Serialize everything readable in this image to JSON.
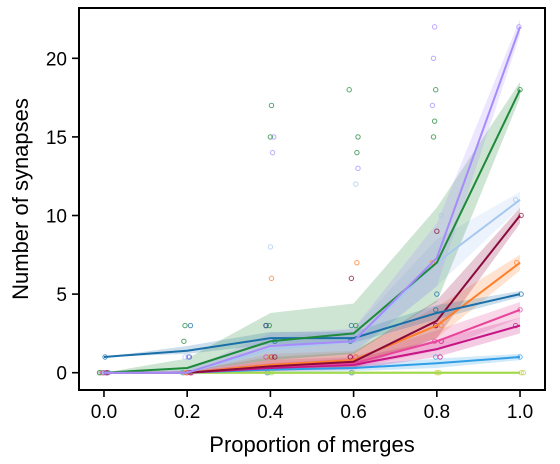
{
  "chart_data": {
    "type": "line",
    "title": "",
    "xlabel": "Proportion of merges",
    "ylabel": "Number of synapses",
    "xlim": [
      -0.06,
      1.06
    ],
    "ylim": [
      -1.1,
      23.2
    ],
    "xticks": [
      0.0,
      0.2,
      0.4,
      0.6,
      0.8,
      1.0
    ],
    "xtick_labels": [
      "0.0",
      "0.2",
      "0.4",
      "0.6",
      "0.8",
      "1.0"
    ],
    "yticks": [
      0,
      5,
      10,
      15,
      20
    ],
    "ytick_labels": [
      "0",
      "5",
      "10",
      "15",
      "20"
    ],
    "grid": false,
    "legend": "none",
    "x": [
      0.0,
      0.2,
      0.4,
      0.6,
      0.8,
      1.0
    ],
    "series": [
      {
        "color": "#f0c040",
        "y": [
          0,
          0,
          0,
          0,
          0,
          0
        ],
        "band_low": [
          0,
          0,
          0,
          0,
          0,
          0
        ],
        "band_high": [
          0,
          0,
          0,
          0,
          0,
          0
        ],
        "points": [
          [
            0,
            0
          ],
          [
            0.2,
            0
          ],
          [
            0.4,
            0
          ],
          [
            0.6,
            0
          ],
          [
            0.8,
            0
          ],
          [
            1.0,
            0
          ]
        ]
      },
      {
        "color": "#9bdc50",
        "y": [
          0,
          0,
          0,
          0,
          0,
          0
        ],
        "band_low": [
          0,
          0,
          0,
          0,
          0,
          0
        ],
        "band_high": [
          0,
          0,
          0,
          0,
          0,
          0
        ],
        "points": [
          [
            0,
            0
          ],
          [
            0.4,
            0
          ],
          [
            0.8,
            0
          ],
          [
            1.0,
            0
          ]
        ]
      },
      {
        "color": "#2f9ee8",
        "y": [
          0,
          0,
          0.2,
          0.3,
          0.6,
          1.0
        ],
        "band_low": [
          0,
          0,
          0,
          0.1,
          0.3,
          0.8
        ],
        "band_high": [
          0,
          0.1,
          0.4,
          0.5,
          0.9,
          1.2
        ],
        "points": [
          [
            0,
            0
          ],
          [
            0.2,
            0
          ],
          [
            0.4,
            0
          ],
          [
            0.6,
            0
          ],
          [
            0.8,
            1
          ],
          [
            1.0,
            1
          ]
        ]
      },
      {
        "color": "#c71585",
        "y": [
          0,
          0,
          0.3,
          0.5,
          1.5,
          3.0
        ],
        "band_low": [
          0,
          0,
          0.1,
          0.2,
          1.0,
          2.5
        ],
        "band_high": [
          0,
          0.1,
          0.6,
          0.9,
          2.1,
          3.5
        ],
        "points": [
          [
            0,
            0
          ],
          [
            0.2,
            0
          ],
          [
            0.4,
            1
          ],
          [
            0.6,
            1
          ],
          [
            0.8,
            1
          ],
          [
            0.8,
            2
          ],
          [
            1.0,
            3
          ]
        ]
      },
      {
        "color": "#e8449a",
        "y": [
          0,
          0,
          0.4,
          0.6,
          2.0,
          4.0
        ],
        "band_low": [
          0,
          0,
          0.1,
          0.3,
          1.4,
          3.5
        ],
        "band_high": [
          0,
          0.1,
          0.8,
          1.0,
          2.7,
          4.5
        ],
        "points": [
          [
            0,
            0
          ],
          [
            0.2,
            0
          ],
          [
            0.4,
            1
          ],
          [
            0.6,
            1
          ],
          [
            0.8,
            2
          ],
          [
            0.8,
            3
          ],
          [
            1.0,
            4
          ]
        ]
      },
      {
        "color": "#ff7f2a",
        "y": [
          0,
          0,
          0.5,
          0.8,
          3.0,
          7.0
        ],
        "band_low": [
          0,
          0,
          0.2,
          0.4,
          2.2,
          6.5
        ],
        "band_high": [
          0,
          0.1,
          1.2,
          1.4,
          4.2,
          7.5
        ],
        "points": [
          [
            0,
            0
          ],
          [
            0.2,
            0
          ],
          [
            0.4,
            1
          ],
          [
            0.4,
            6
          ],
          [
            0.6,
            1
          ],
          [
            0.6,
            7
          ],
          [
            0.8,
            3
          ],
          [
            0.8,
            7
          ],
          [
            1.0,
            7
          ]
        ]
      },
      {
        "color": "#8b0a3c",
        "y": [
          0,
          0,
          0.4,
          0.7,
          3.3,
          10.0
        ],
        "band_low": [
          0,
          0,
          0.2,
          0.3,
          2.2,
          9.5
        ],
        "band_high": [
          0,
          0.1,
          1.0,
          1.3,
          4.6,
          10.5
        ],
        "points": [
          [
            0,
            0
          ],
          [
            0.2,
            0
          ],
          [
            0.4,
            1
          ],
          [
            0.4,
            3
          ],
          [
            0.6,
            1
          ],
          [
            0.6,
            6
          ],
          [
            0.8,
            3
          ],
          [
            0.8,
            9
          ],
          [
            1.0,
            10
          ]
        ]
      },
      {
        "color": "#a8c8f0",
        "y": [
          0,
          0,
          1.5,
          2.0,
          7.0,
          11.0
        ],
        "band_low": [
          0,
          0,
          0.8,
          1.2,
          5.5,
          10.5
        ],
        "band_high": [
          0,
          0.2,
          2.2,
          2.8,
          8.5,
          11.5
        ],
        "points": [
          [
            0,
            0
          ],
          [
            0.2,
            1
          ],
          [
            0.4,
            2
          ],
          [
            0.4,
            8
          ],
          [
            0.6,
            2
          ],
          [
            0.6,
            12
          ],
          [
            0.8,
            7
          ],
          [
            0.8,
            10
          ],
          [
            1.0,
            11
          ]
        ]
      },
      {
        "color": "#1a6fa8",
        "y": [
          1.0,
          1.4,
          2.2,
          2.2,
          3.8,
          5.0
        ],
        "band_low": [
          1.0,
          1.2,
          1.8,
          1.9,
          3.4,
          4.8
        ],
        "band_high": [
          1.0,
          1.7,
          2.6,
          2.6,
          4.3,
          5.2
        ],
        "points": [
          [
            0,
            1
          ],
          [
            0.2,
            1
          ],
          [
            0.2,
            3
          ],
          [
            0.4,
            2
          ],
          [
            0.4,
            3
          ],
          [
            0.6,
            2
          ],
          [
            0.6,
            3
          ],
          [
            0.8,
            4
          ],
          [
            0.8,
            5
          ],
          [
            1.0,
            5
          ]
        ]
      },
      {
        "color": "#1e8a3a",
        "y": [
          0,
          0.3,
          2.0,
          2.5,
          7.0,
          18.0
        ],
        "band_low": [
          0,
          0.1,
          0.8,
          1.2,
          4.5,
          17.5
        ],
        "band_high": [
          0,
          0.9,
          3.8,
          4.4,
          10.5,
          18.5
        ],
        "points": [
          [
            0,
            0
          ],
          [
            0.2,
            2
          ],
          [
            0.2,
            3
          ],
          [
            0.4,
            3
          ],
          [
            0.4,
            15
          ],
          [
            0.4,
            17
          ],
          [
            0.6,
            3
          ],
          [
            0.6,
            14
          ],
          [
            0.6,
            15
          ],
          [
            0.6,
            18
          ],
          [
            0.8,
            15
          ],
          [
            0.8,
            16
          ],
          [
            0.8,
            18
          ],
          [
            1.0,
            18
          ]
        ]
      },
      {
        "color": "#a78bfa",
        "y": [
          0,
          0,
          1.7,
          2.0,
          7.3,
          22.0
        ],
        "band_low": [
          0,
          0,
          1.0,
          1.3,
          5.5,
          21.5
        ],
        "band_high": [
          0,
          0.2,
          2.5,
          2.8,
          9.5,
          22.5
        ],
        "points": [
          [
            0,
            0
          ],
          [
            0.2,
            1
          ],
          [
            0.4,
            14
          ],
          [
            0.4,
            15
          ],
          [
            0.6,
            13
          ],
          [
            0.8,
            17
          ],
          [
            0.8,
            20
          ],
          [
            0.8,
            22
          ],
          [
            1.0,
            22
          ]
        ]
      }
    ]
  }
}
